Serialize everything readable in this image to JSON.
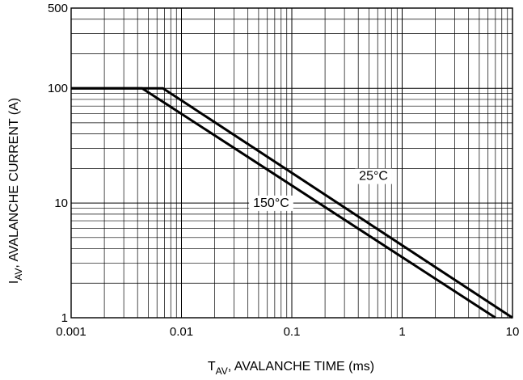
{
  "chart_data": {
    "type": "line",
    "title": "",
    "xlabel": {
      "main": "T",
      "sub": "AV",
      "rest": ", AVALANCHE TIME (ms)"
    },
    "ylabel": {
      "main": "I",
      "sub": "AV",
      "rest": ", AVALANCHE CURRENT (A)"
    },
    "x_scale": "log",
    "y_scale": "log",
    "xlim": [
      0.001,
      10
    ],
    "ylim": [
      1,
      500
    ],
    "x_ticks": [
      {
        "value": 0.001,
        "label": "0.001"
      },
      {
        "value": 0.01,
        "label": "0.01"
      },
      {
        "value": 0.1,
        "label": "0.1"
      },
      {
        "value": 1,
        "label": "1"
      },
      {
        "value": 10,
        "label": "10"
      }
    ],
    "y_ticks": [
      {
        "value": 1,
        "label": "1"
      },
      {
        "value": 10,
        "label": "10"
      },
      {
        "value": 100,
        "label": "100"
      },
      {
        "value": 500,
        "label": "500"
      }
    ],
    "grid": true,
    "series": [
      {
        "name": "25°C",
        "points": [
          [
            0.001,
            100
          ],
          [
            0.0068,
            100
          ],
          [
            10,
            1
          ]
        ]
      },
      {
        "name": "150°C",
        "points": [
          [
            0.001,
            100
          ],
          [
            0.0044,
            100
          ],
          [
            7,
            1
          ]
        ]
      }
    ],
    "annotations": [
      {
        "text": "25°C",
        "series": "25°C",
        "x": 0.55,
        "y": 17.5
      },
      {
        "text": "150°C",
        "series": "150°C",
        "x": 0.065,
        "y": 10.2
      }
    ],
    "colors": {
      "line": "#000000",
      "grid": "#000000",
      "background": "#ffffff"
    }
  }
}
